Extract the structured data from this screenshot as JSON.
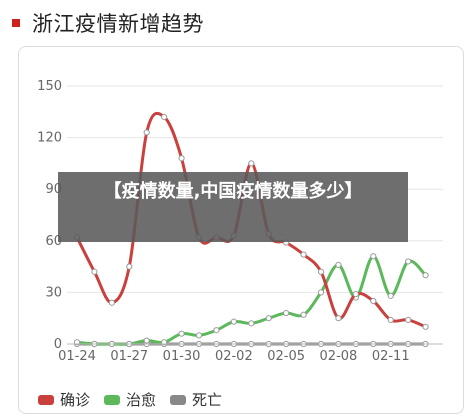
{
  "page": {
    "title": "浙江疫情新增趋势",
    "header_color": "#cc2222",
    "overlay_text": "【疫情数量,中国疫情数量多少】"
  },
  "chart_data": {
    "type": "line",
    "title": "浙江疫情新增趋势",
    "ylim": [
      0,
      150
    ],
    "yticks": [
      0,
      30,
      60,
      90,
      120,
      150
    ],
    "xtick_labels": [
      "01-24",
      "01-27",
      "01-30",
      "02-02",
      "02-05",
      "02-08",
      "02-11"
    ],
    "x": [
      "01-24",
      "01-25",
      "01-26",
      "01-27",
      "01-28",
      "01-29",
      "01-30",
      "01-31",
      "02-01",
      "02-02",
      "02-03",
      "02-04",
      "02-05",
      "02-06",
      "02-07",
      "02-08",
      "02-09",
      "02-10",
      "02-11",
      "02-12",
      "02-13",
      "02-14"
    ],
    "grid": true,
    "legend_position": "bottom",
    "series": [
      {
        "name": "确诊",
        "color": "#c9403d",
        "values": [
          62,
          42,
          24,
          45,
          123,
          132,
          108,
          62,
          62,
          63,
          105,
          64,
          59,
          52,
          42,
          15,
          29,
          25,
          14,
          14,
          10,
          null
        ]
      },
      {
        "name": "治愈",
        "color": "#5bb85b",
        "values": [
          1,
          0,
          0,
          0,
          2,
          1,
          6,
          5,
          8,
          13,
          12,
          15,
          18,
          17,
          30,
          46,
          27,
          51,
          28,
          48,
          40,
          null
        ]
      },
      {
        "name": "死亡",
        "color": "#888888",
        "values": [
          0,
          0,
          0,
          0,
          0,
          0,
          0,
          0,
          0,
          0,
          0,
          0,
          0,
          0,
          0,
          0,
          0,
          0,
          0,
          0,
          0,
          null
        ]
      }
    ]
  }
}
